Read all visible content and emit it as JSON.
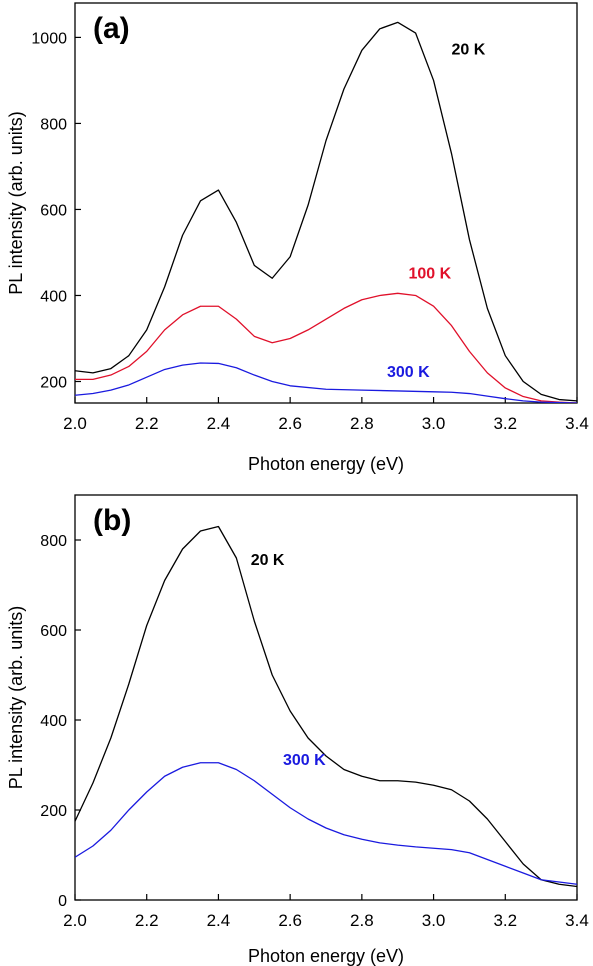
{
  "chart_data": [
    {
      "type": "line",
      "panel_label": "(a)",
      "xlabel": "Photon energy (eV)",
      "ylabel": "PL intensity (arb. units)",
      "xlim": [
        2.0,
        3.4
      ],
      "ylim": [
        150,
        1080
      ],
      "xticks": [
        2.0,
        2.2,
        2.4,
        2.6,
        2.8,
        3.0,
        3.2,
        3.4
      ],
      "xtick_labels": [
        "2.0",
        "2.2",
        "2.4",
        "2.6",
        "2.8",
        "3.0",
        "3.2",
        "3.4"
      ],
      "yticks": [
        200,
        400,
        600,
        800,
        1000
      ],
      "ytick_labels": [
        "200",
        "400",
        "600",
        "800",
        "1000"
      ],
      "grid": false,
      "series": [
        {
          "name": "20 K",
          "color": "#000000",
          "x": [
            2.0,
            2.05,
            2.1,
            2.15,
            2.2,
            2.25,
            2.3,
            2.35,
            2.4,
            2.45,
            2.5,
            2.55,
            2.6,
            2.65,
            2.7,
            2.75,
            2.8,
            2.85,
            2.9,
            2.95,
            3.0,
            3.05,
            3.1,
            3.15,
            3.2,
            3.25,
            3.3,
            3.35,
            3.4
          ],
          "y": [
            225,
            220,
            230,
            260,
            320,
            420,
            540,
            620,
            645,
            570,
            470,
            440,
            490,
            610,
            760,
            880,
            970,
            1020,
            1035,
            1010,
            900,
            730,
            530,
            370,
            260,
            200,
            170,
            158,
            155
          ]
        },
        {
          "name": "100 K",
          "color": "#e0102a",
          "x": [
            2.0,
            2.05,
            2.1,
            2.15,
            2.2,
            2.25,
            2.3,
            2.35,
            2.4,
            2.45,
            2.5,
            2.55,
            2.6,
            2.65,
            2.7,
            2.75,
            2.8,
            2.85,
            2.9,
            2.95,
            3.0,
            3.05,
            3.1,
            3.15,
            3.2,
            3.25,
            3.3,
            3.35,
            3.4
          ],
          "y": [
            205,
            205,
            215,
            235,
            270,
            320,
            355,
            375,
            375,
            345,
            305,
            290,
            300,
            320,
            345,
            370,
            390,
            400,
            405,
            400,
            375,
            330,
            270,
            220,
            185,
            165,
            155,
            152,
            150
          ]
        },
        {
          "name": "300 K",
          "color": "#1a1adf",
          "x": [
            2.0,
            2.05,
            2.1,
            2.15,
            2.2,
            2.25,
            2.3,
            2.35,
            2.4,
            2.45,
            2.5,
            2.55,
            2.6,
            2.7,
            2.8,
            2.9,
            3.0,
            3.05,
            3.1,
            3.15,
            3.2,
            3.25,
            3.3,
            3.4
          ],
          "y": [
            168,
            172,
            180,
            192,
            210,
            228,
            238,
            243,
            242,
            232,
            215,
            200,
            190,
            182,
            180,
            178,
            176,
            175,
            172,
            166,
            160,
            155,
            152,
            150
          ]
        }
      ],
      "annotations": [
        {
          "text": "20 K",
          "x": 3.05,
          "y": 960,
          "color": "#000000"
        },
        {
          "text": "100 K",
          "x": 2.93,
          "y": 440,
          "color": "#e0102a"
        },
        {
          "text": "300 K",
          "x": 2.87,
          "y": 210,
          "color": "#1a1adf"
        }
      ]
    },
    {
      "type": "line",
      "panel_label": "(b)",
      "xlabel": "Photon energy (eV)",
      "ylabel": "PL intensity (arb. units)",
      "xlim": [
        2.0,
        3.4
      ],
      "ylim": [
        0,
        900
      ],
      "xticks": [
        2.0,
        2.2,
        2.4,
        2.6,
        2.8,
        3.0,
        3.2,
        3.4
      ],
      "xtick_labels": [
        "2.0",
        "2.2",
        "2.4",
        "2.6",
        "2.8",
        "3.0",
        "3.2",
        "3.4"
      ],
      "yticks": [
        0,
        200,
        400,
        600,
        800
      ],
      "ytick_labels": [
        "0",
        "200",
        "400",
        "600",
        "800"
      ],
      "grid": false,
      "series": [
        {
          "name": "20 K",
          "color": "#000000",
          "x": [
            2.0,
            2.05,
            2.1,
            2.15,
            2.2,
            2.25,
            2.3,
            2.35,
            2.4,
            2.45,
            2.5,
            2.55,
            2.6,
            2.65,
            2.7,
            2.75,
            2.8,
            2.85,
            2.9,
            2.95,
            3.0,
            3.05,
            3.1,
            3.15,
            3.2,
            3.25,
            3.3,
            3.35,
            3.4
          ],
          "y": [
            175,
            260,
            360,
            480,
            610,
            710,
            780,
            820,
            830,
            760,
            620,
            500,
            420,
            360,
            320,
            290,
            275,
            265,
            265,
            262,
            255,
            245,
            220,
            180,
            130,
            80,
            45,
            35,
            30
          ]
        },
        {
          "name": "300 K",
          "color": "#1a1adf",
          "x": [
            2.0,
            2.05,
            2.1,
            2.15,
            2.2,
            2.25,
            2.3,
            2.35,
            2.4,
            2.45,
            2.5,
            2.55,
            2.6,
            2.65,
            2.7,
            2.75,
            2.8,
            2.85,
            2.9,
            2.95,
            3.0,
            3.05,
            3.1,
            3.15,
            3.2,
            3.25,
            3.3,
            3.35,
            3.4
          ],
          "y": [
            95,
            120,
            155,
            200,
            240,
            275,
            295,
            305,
            305,
            290,
            265,
            235,
            205,
            180,
            160,
            145,
            135,
            127,
            122,
            118,
            115,
            112,
            105,
            90,
            75,
            60,
            45,
            40,
            35
          ]
        }
      ],
      "annotations": [
        {
          "text": "20 K",
          "x": 2.49,
          "y": 745,
          "color": "#000000"
        },
        {
          "text": "300 K",
          "x": 2.58,
          "y": 300,
          "color": "#1a1adf"
        }
      ]
    }
  ]
}
